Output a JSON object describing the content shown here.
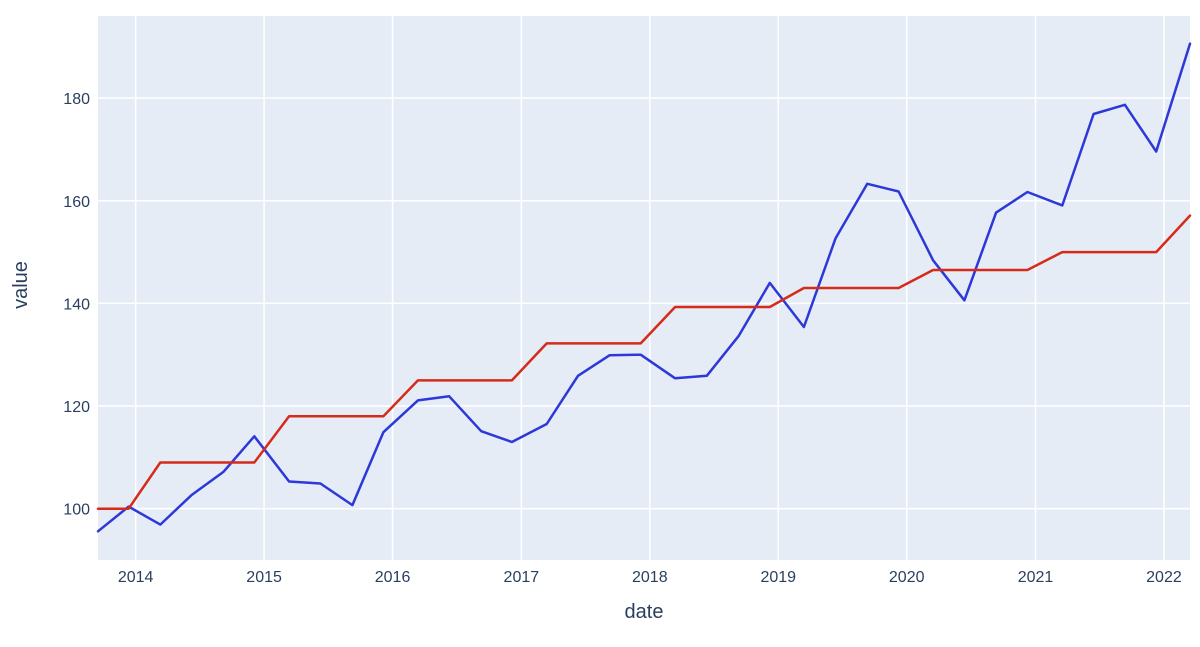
{
  "chart_data": {
    "type": "line",
    "xlabel": "date",
    "ylabel": "value",
    "xlim": [
      "2013-09-16",
      "2022-03-16"
    ],
    "ylim": [
      90,
      196
    ],
    "x_ticks": [
      "2014",
      "2015",
      "2016",
      "2017",
      "2018",
      "2019",
      "2020",
      "2021",
      "2022"
    ],
    "y_ticks": [
      "100",
      "120",
      "140",
      "160",
      "180"
    ],
    "grid": true,
    "series": [
      {
        "color": "#2d38d8",
        "points": [
          [
            "2013-09-16",
            95.6
          ],
          [
            "2013-12-12",
            100.4
          ],
          [
            "2014-03-12",
            96.9
          ],
          [
            "2014-06-08",
            102.6
          ],
          [
            "2014-09-08",
            107.2
          ],
          [
            "2014-12-04",
            114.1
          ],
          [
            "2015-03-13",
            105.3
          ],
          [
            "2015-06-10",
            104.9
          ],
          [
            "2015-09-09",
            100.7
          ],
          [
            "2015-12-06",
            114.9
          ],
          [
            "2016-03-13",
            121.1
          ],
          [
            "2016-06-10",
            121.9
          ],
          [
            "2016-09-09",
            115.1
          ],
          [
            "2016-12-05",
            113.0
          ],
          [
            "2017-03-14",
            116.5
          ],
          [
            "2017-06-11",
            125.9
          ],
          [
            "2017-09-09",
            129.9
          ],
          [
            "2017-12-06",
            130.0
          ],
          [
            "2018-03-14",
            125.4
          ],
          [
            "2018-06-12",
            125.9
          ],
          [
            "2018-09-10",
            133.6
          ],
          [
            "2018-12-08",
            144.0
          ],
          [
            "2019-03-15",
            135.4
          ],
          [
            "2019-06-13",
            152.7
          ],
          [
            "2019-09-11",
            163.3
          ],
          [
            "2019-12-09",
            161.8
          ],
          [
            "2020-03-16",
            148.4
          ],
          [
            "2020-06-13",
            140.6
          ],
          [
            "2020-09-11",
            157.7
          ],
          [
            "2020-12-09",
            161.7
          ],
          [
            "2021-03-18",
            159.1
          ],
          [
            "2021-06-15",
            176.9
          ],
          [
            "2021-09-12",
            178.7
          ],
          [
            "2021-12-10",
            169.6
          ],
          [
            "2022-03-16",
            190.6
          ]
        ]
      },
      {
        "color": "#d62b1a",
        "points": [
          [
            "2013-09-16",
            100.0
          ],
          [
            "2013-12-12",
            100.0
          ],
          [
            "2014-03-12",
            109.0
          ],
          [
            "2014-12-04",
            109.0
          ],
          [
            "2015-03-13",
            118.0
          ],
          [
            "2015-12-06",
            118.0
          ],
          [
            "2016-03-13",
            125.0
          ],
          [
            "2016-12-05",
            125.0
          ],
          [
            "2017-03-14",
            132.2
          ],
          [
            "2017-12-06",
            132.2
          ],
          [
            "2018-03-14",
            139.3
          ],
          [
            "2018-12-08",
            139.3
          ],
          [
            "2019-03-15",
            143.0
          ],
          [
            "2019-12-09",
            143.0
          ],
          [
            "2020-03-16",
            146.5
          ],
          [
            "2020-12-09",
            146.5
          ],
          [
            "2021-03-18",
            150.0
          ],
          [
            "2021-12-10",
            150.0
          ],
          [
            "2022-03-16",
            157.1
          ]
        ]
      }
    ]
  }
}
